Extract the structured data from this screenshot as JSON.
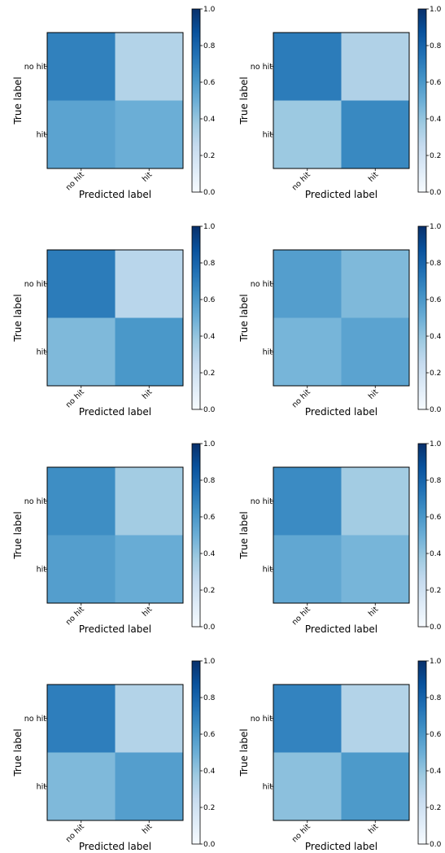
{
  "labels": {
    "xlabel": "Predicted label",
    "ylabel": "True label",
    "classes": [
      "no hit",
      "hit"
    ],
    "colorbar_ticks": [
      "0.0",
      "0.2",
      "0.4",
      "0.6",
      "0.8",
      "1.0"
    ]
  },
  "chart_data": [
    {
      "type": "heatmap",
      "xlabel": "Predicted label",
      "ylabel": "True label",
      "x_categories": [
        "no hit",
        "hit"
      ],
      "y_categories": [
        "no hit",
        "hit"
      ],
      "values": [
        [
          0.69,
          0.31
        ],
        [
          0.55,
          0.5
        ]
      ],
      "colorbar_range": [
        0,
        1
      ],
      "colormap": "Blues"
    },
    {
      "type": "heatmap",
      "xlabel": "Predicted label",
      "ylabel": "True label",
      "x_categories": [
        "no hit",
        "hit"
      ],
      "y_categories": [
        "no hit",
        "hit"
      ],
      "values": [
        [
          0.71,
          0.32
        ],
        [
          0.38,
          0.66
        ]
      ],
      "colorbar_range": [
        0,
        1
      ],
      "colormap": "Blues"
    },
    {
      "type": "heatmap",
      "xlabel": "Predicted label",
      "ylabel": "True label",
      "x_categories": [
        "no hit",
        "hit"
      ],
      "y_categories": [
        "no hit",
        "hit"
      ],
      "values": [
        [
          0.71,
          0.29
        ],
        [
          0.45,
          0.6
        ]
      ],
      "colorbar_range": [
        0,
        1
      ],
      "colormap": "Blues"
    },
    {
      "type": "heatmap",
      "xlabel": "Predicted label",
      "ylabel": "True label",
      "x_categories": [
        "no hit",
        "hit"
      ],
      "y_categories": [
        "no hit",
        "hit"
      ],
      "values": [
        [
          0.57,
          0.45
        ],
        [
          0.47,
          0.55
        ]
      ],
      "colorbar_range": [
        0,
        1
      ],
      "colormap": "Blues"
    },
    {
      "type": "heatmap",
      "xlabel": "Predicted label",
      "ylabel": "True label",
      "x_categories": [
        "no hit",
        "hit"
      ],
      "y_categories": [
        "no hit",
        "hit"
      ],
      "values": [
        [
          0.64,
          0.36
        ],
        [
          0.57,
          0.51
        ]
      ],
      "colorbar_range": [
        0,
        1
      ],
      "colormap": "Blues"
    },
    {
      "type": "heatmap",
      "xlabel": "Predicted label",
      "ylabel": "True label",
      "x_categories": [
        "no hit",
        "hit"
      ],
      "y_categories": [
        "no hit",
        "hit"
      ],
      "values": [
        [
          0.65,
          0.36
        ],
        [
          0.53,
          0.47
        ]
      ],
      "colorbar_range": [
        0,
        1
      ],
      "colormap": "Blues"
    },
    {
      "type": "heatmap",
      "xlabel": "Predicted label",
      "ylabel": "True label",
      "x_categories": [
        "no hit",
        "hit"
      ],
      "y_categories": [
        "no hit",
        "hit"
      ],
      "values": [
        [
          0.7,
          0.31
        ],
        [
          0.45,
          0.57
        ]
      ],
      "colorbar_range": [
        0,
        1
      ],
      "colormap": "Blues"
    },
    {
      "type": "heatmap",
      "xlabel": "Predicted label",
      "ylabel": "True label",
      "x_categories": [
        "no hit",
        "hit"
      ],
      "y_categories": [
        "no hit",
        "hit"
      ],
      "values": [
        [
          0.68,
          0.31
        ],
        [
          0.42,
          0.59
        ]
      ],
      "colorbar_range": [
        0,
        1
      ],
      "colormap": "Blues"
    }
  ]
}
